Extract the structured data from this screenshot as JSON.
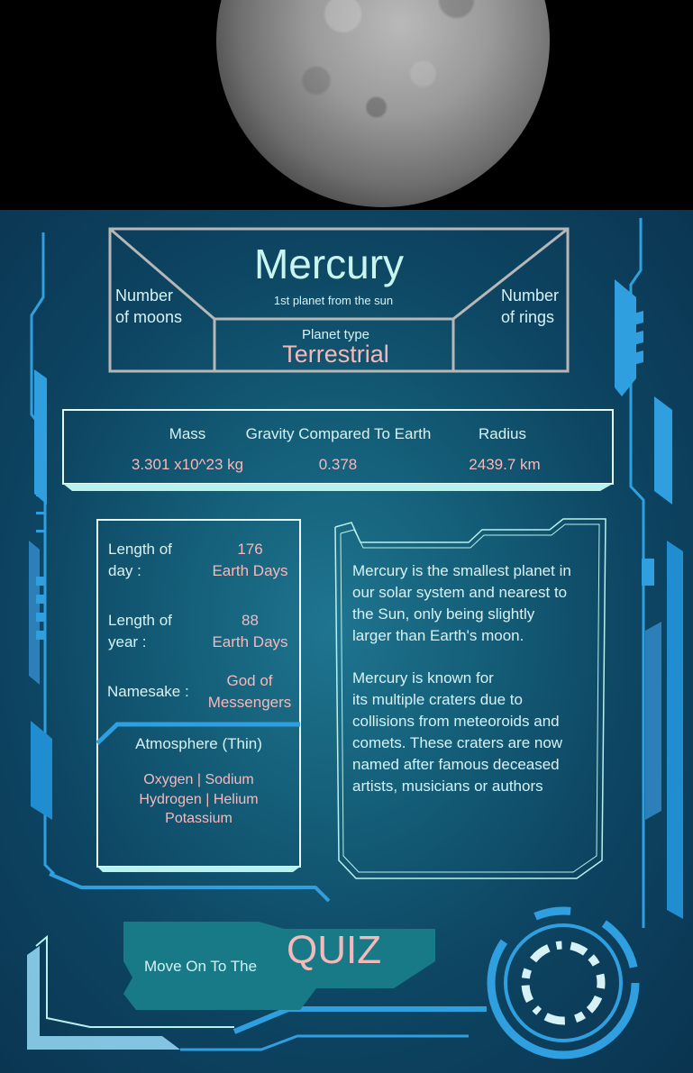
{
  "planet": {
    "name": "Mercury",
    "subtitle": "1st planet from the sun",
    "moons_label": "Number\nof moons",
    "rings_label": "Number\nof rings",
    "planet_type_label": "Planet type",
    "planet_type_value": "Terrestrial"
  },
  "stats": {
    "mass_label": "Mass",
    "gravity_label": "Gravity Compared To Earth",
    "radius_label": "Radius",
    "mass_value": "3.301 x10^23 kg",
    "gravity_value": "0.378",
    "radius_value": "2439.7 km"
  },
  "info": {
    "day_label_1": "Length of",
    "day_label_2": "day :",
    "day_value_1": "176",
    "day_value_2": "Earth Days",
    "year_label_1": "Length of",
    "year_label_2": "year :",
    "year_value_1": "88",
    "year_value_2": "Earth Days",
    "namesake_label": "Namesake :",
    "namesake_value_1": "God of",
    "namesake_value_2": "Messengers",
    "atmosphere_title": "Atmosphere (Thin)",
    "atmosphere_line_1": "Oxygen | Sodium",
    "atmosphere_line_2": "Hydrogen | Helium",
    "atmosphere_line_3": "Potassium"
  },
  "description": {
    "paragraph_1": "Mercury is the smallest planet in\nour solar system and nearest to\nthe Sun, only being slightly\n larger than Earth's moon.",
    "paragraph_2": "Mercury is known for\nits multiple craters due to\ncollisions from meteoroids and\ncomets. These craters are now\nnamed after famous deceased\n artists, musicians or authors"
  },
  "quiz": {
    "prefix": "Move On To The",
    "label": "QUIZ"
  },
  "colors": {
    "frame_blue": "#2f9fe0",
    "light_cyan": "#b9f1ee",
    "pink_text": "#f4b9bb",
    "quiz_teal": "#187a86"
  },
  "icons": {
    "hud_ring": "hud-ring-icon"
  }
}
